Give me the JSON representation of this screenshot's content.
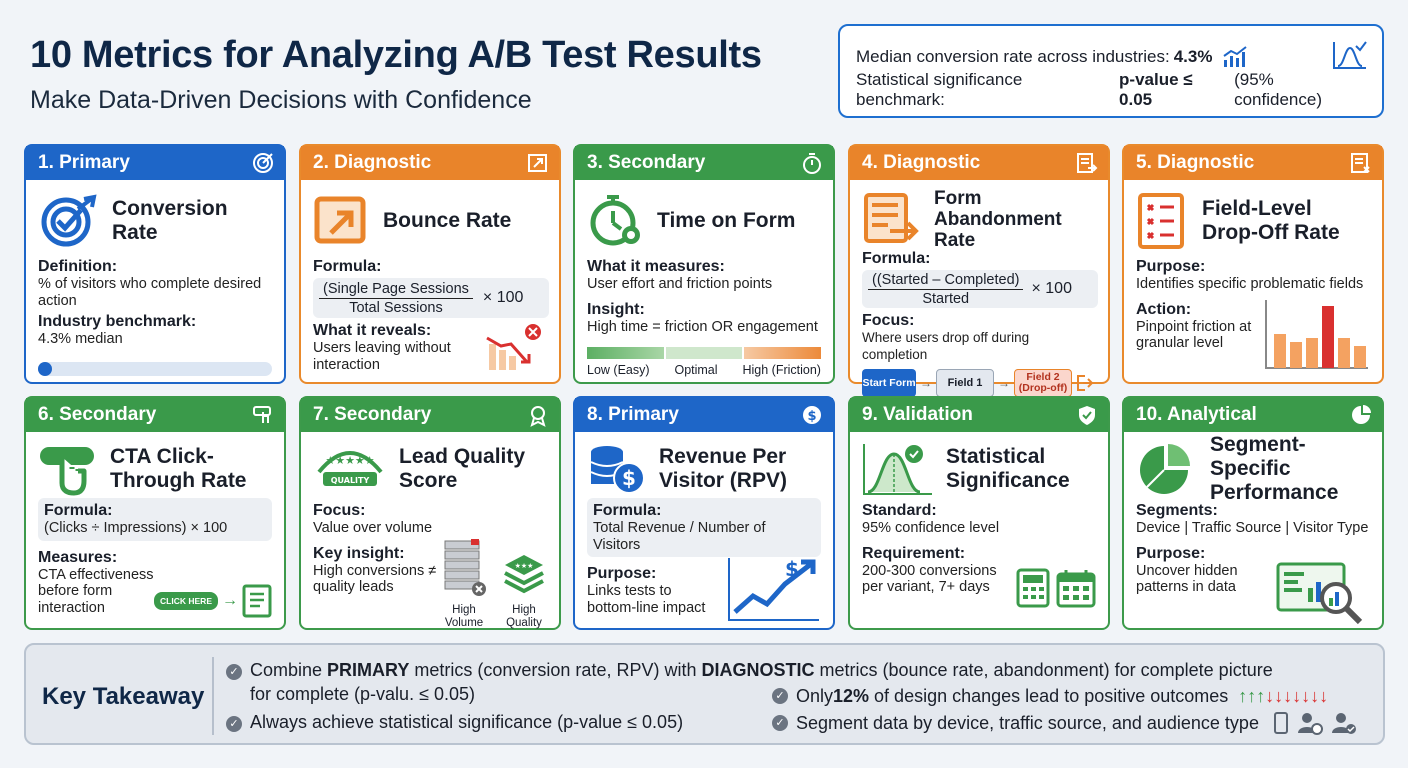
{
  "header": {
    "title": "10 Metrics for Analyzing A/B Test Results",
    "subtitle": "Make Data-Driven Decisions with Confidence"
  },
  "benchmarks": {
    "line1_prefix": "Median conversion rate across industries:",
    "line1_value": "4.3%",
    "line2_prefix": "Statistical significance benchmark:",
    "line2_value": "p-value ≤ 0.05",
    "line2_suffix": "(95% confidence)"
  },
  "colors": {
    "primary": "#1e66c8",
    "diagnostic": "#e9842a",
    "secondary": "#3a9a4a"
  },
  "cards": {
    "c1": {
      "tag": "1. Primary",
      "name": "Conversion Rate",
      "l1": "Definition:",
      "t1": "% of visitors who complete desired action",
      "l2": "Industry benchmark:",
      "t2": "4.3% median",
      "benchmark_fill": 0.043,
      "icon": "target-icon"
    },
    "c2": {
      "tag": "2. Diagnostic",
      "name": "Bounce Rate",
      "l1": "Formula:",
      "num": "(Single Page Sessions",
      "den": "Total Sessions",
      "mult": "× 100",
      "l2": "What it reveals:",
      "t2": "Users leaving without interaction",
      "icon": "exit-icon"
    },
    "c3": {
      "tag": "3. Secondary",
      "name": "Time on Form",
      "l1": "What it measures:",
      "t1": "User effort and friction points",
      "l2": "Insight:",
      "t2": "High time = friction OR engagement",
      "scale": [
        "Low (Easy)",
        "Optimal",
        "High (Friction)"
      ],
      "icon": "stopwatch-icon"
    },
    "c4": {
      "tag": "4. Diagnostic",
      "name": "Form Abandonment Rate",
      "l1": "Formula:",
      "num": "((Started – Completed)",
      "den": "Started",
      "mult": "× 100",
      "l2": "Focus:",
      "t2": "Where users drop off during completion",
      "flow": [
        "Start Form",
        "Field 1",
        "Field 2 (Drop-off)"
      ],
      "icon": "form-exit-icon"
    },
    "c5": {
      "tag": "5. Diagnostic",
      "name": "Field-Level Drop-Off Rate",
      "l1": "Purpose:",
      "t1": "Identifies specific problematic fields",
      "l2": "Action:",
      "t2": "Pinpoint friction at granular level",
      "icon": "checklist-x-icon"
    },
    "c6": {
      "tag": "6. Secondary",
      "name": "CTA Click-Through Rate",
      "l1": "Formula:",
      "t1": "(Clicks ÷ Impressions) × 100",
      "l2": "Measures:",
      "t2": "CTA effectiveness before form interaction",
      "button": "CLICK HERE",
      "icon": "click-icon"
    },
    "c7": {
      "tag": "7. Secondary",
      "name": "Lead Quality Score",
      "l1": "Focus:",
      "t1": "Value over volume",
      "l2": "Key insight:",
      "t2": "High conversions ≠ quality leads",
      "vol": "High Volume",
      "qual": "High Quality",
      "badge": "QUALITY",
      "icon": "award-icon"
    },
    "c8": {
      "tag": "8. Primary",
      "name": "Revenue Per Visitor (RPV)",
      "l1": "Formula:",
      "t1": "Total Revenue / Number of Visitors",
      "l2": "Purpose:",
      "t2": "Links tests to bottom-line impact",
      "icon": "coins-icon"
    },
    "c9": {
      "tag": "9. Validation",
      "name": "Statistical Significance",
      "l1": "Standard:",
      "t1": "95% confidence level",
      "l2": "Requirement:",
      "t2": "200-300 conversions per variant, 7+ days",
      "icon": "bell-curve-icon"
    },
    "c10": {
      "tag": "10. Analytical",
      "name": "Segment-Specific Performance",
      "l1": "Segments:",
      "t1": "Device | Traffic Source | Visitor Type",
      "l2": "Purpose:",
      "t2": "Uncover hidden patterns in data",
      "icon": "pie-icon"
    }
  },
  "takeaway": {
    "heading": "Key Takeaway",
    "i1_a": "Combine ",
    "i1_b": "PRIMARY",
    "i1_c": " metrics (conversion rate, RPV) with ",
    "i1_d": "DIAGNOSTIC",
    "i1_e": " metrics (bounce rate, abandonment) for complete picture",
    "i1_line2": "for complete (p-valu. ≤ 0.05)",
    "i2": "Always achieve statistical significance (p-value ≤ 0.05)",
    "i3_a": "Only ",
    "i3_b": "12%",
    "i3_c": " of design changes lead to positive outcomes",
    "i4": "Segment data by device, traffic source, and audience type",
    "positive_share": 0.12
  }
}
